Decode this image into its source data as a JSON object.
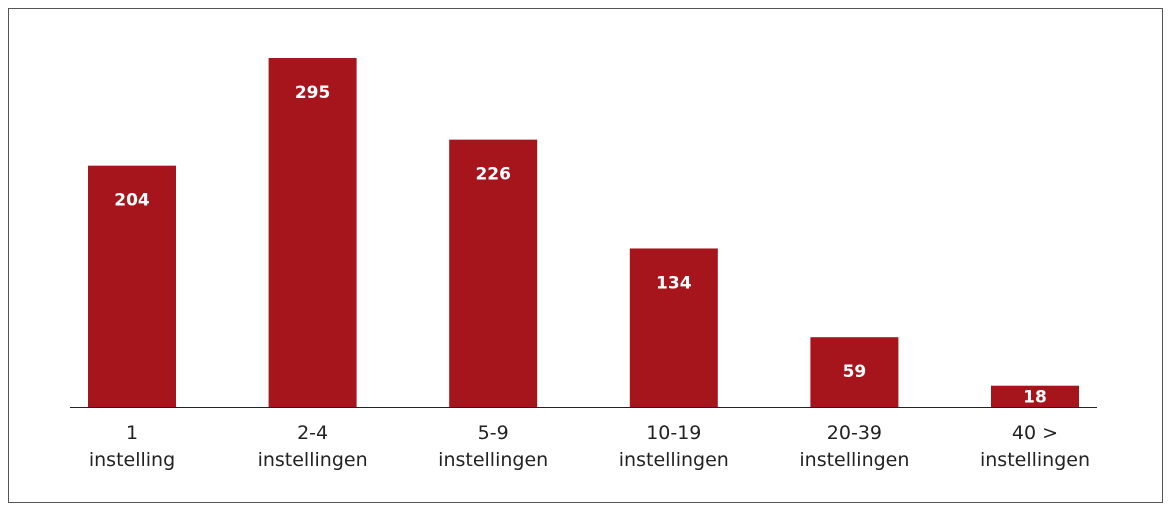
{
  "chart_data": {
    "type": "bar",
    "categories": [
      "1\ninstelling",
      "2-4\ninstellingen",
      "5-9\ninstellingen",
      "10-19\ninstellingen",
      "20-39\ninstellingen",
      "40 >\ninstellingen"
    ],
    "values": [
      204,
      295,
      226,
      134,
      59,
      18
    ],
    "color": "#a6141c"
  }
}
